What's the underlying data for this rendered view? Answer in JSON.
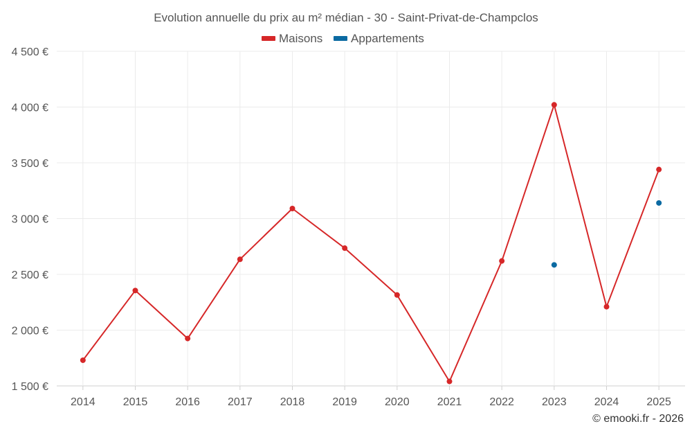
{
  "chart_data": {
    "type": "line",
    "title": "Evolution annuelle du prix au m² médian - 30 - Saint-Privat-de-Champclos",
    "categories": [
      "2014",
      "2015",
      "2016",
      "2017",
      "2018",
      "2019",
      "2020",
      "2021",
      "2022",
      "2023",
      "2024",
      "2025"
    ],
    "series": [
      {
        "name": "Maisons",
        "color": "#d62728",
        "mode": "line",
        "values": [
          1730,
          2355,
          1925,
          2635,
          3090,
          2735,
          2315,
          1540,
          2620,
          4020,
          2210,
          3440
        ]
      },
      {
        "name": "Appartements",
        "color": "#0b6aa2",
        "mode": "markers",
        "values": [
          null,
          null,
          null,
          null,
          null,
          null,
          null,
          null,
          null,
          2585,
          null,
          3140
        ]
      }
    ],
    "ylim": [
      1500,
      4500
    ],
    "yticks": [
      1500,
      2000,
      2500,
      3000,
      3500,
      4000,
      4500
    ],
    "ytick_labels": [
      "1 500 €",
      "2 000 €",
      "2 500 €",
      "3 000 €",
      "3 500 €",
      "4 000 €",
      "4 500 €"
    ],
    "xlabel": "",
    "ylabel": "",
    "grid": true,
    "legend_position": "top-center",
    "credit": "© emooki.fr - 2026"
  }
}
